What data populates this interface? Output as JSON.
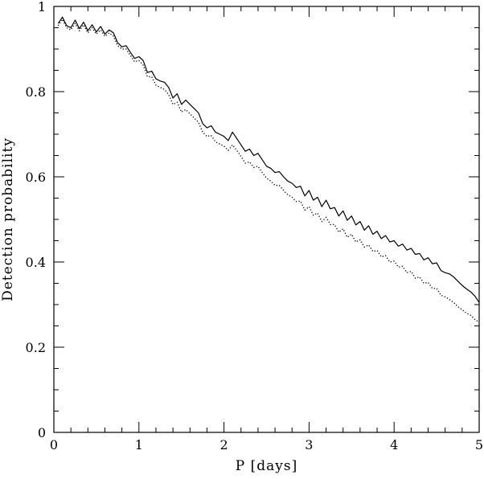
{
  "chart_data": {
    "type": "line",
    "title": "",
    "xlabel": "P [days]",
    "ylabel": "Detection probability",
    "xlim": [
      0,
      5
    ],
    "ylim": [
      0,
      1
    ],
    "x_ticks": [
      0,
      1,
      2,
      3,
      4,
      5
    ],
    "x_tick_labels": [
      "0",
      "1",
      "2",
      "3",
      "4",
      "5"
    ],
    "y_ticks": [
      0,
      0.2,
      0.4,
      0.6,
      0.8,
      1
    ],
    "y_tick_labels": [
      "0",
      "0.2",
      "0.4",
      "0.6",
      "0.8",
      "1"
    ],
    "grid": false,
    "series": [
      {
        "style": "solid",
        "color": "#000000",
        "x": [
          0.05,
          0.1,
          0.15,
          0.2,
          0.25,
          0.3,
          0.35,
          0.4,
          0.45,
          0.5,
          0.55,
          0.6,
          0.65,
          0.7,
          0.75,
          0.8,
          0.85,
          0.9,
          0.95,
          1.0,
          1.05,
          1.1,
          1.15,
          1.2,
          1.25,
          1.3,
          1.35,
          1.4,
          1.45,
          1.5,
          1.55,
          1.6,
          1.65,
          1.7,
          1.75,
          1.8,
          1.85,
          1.9,
          1.95,
          2.0,
          2.05,
          2.1,
          2.15,
          2.2,
          2.25,
          2.3,
          2.35,
          2.4,
          2.45,
          2.5,
          2.55,
          2.6,
          2.65,
          2.7,
          2.75,
          2.8,
          2.85,
          2.9,
          2.95,
          3.0,
          3.05,
          3.1,
          3.15,
          3.2,
          3.25,
          3.3,
          3.35,
          3.4,
          3.45,
          3.5,
          3.55,
          3.6,
          3.65,
          3.7,
          3.75,
          3.8,
          3.85,
          3.9,
          3.95,
          4.0,
          4.05,
          4.1,
          4.15,
          4.2,
          4.25,
          4.3,
          4.35,
          4.4,
          4.45,
          4.5,
          4.55,
          4.6,
          4.65,
          4.7,
          4.75,
          4.8,
          4.85,
          4.9,
          4.95,
          5.0
        ],
        "values": [
          0.96,
          0.975,
          0.955,
          0.95,
          0.968,
          0.948,
          0.963,
          0.943,
          0.957,
          0.94,
          0.953,
          0.935,
          0.945,
          0.938,
          0.915,
          0.905,
          0.908,
          0.892,
          0.878,
          0.882,
          0.873,
          0.845,
          0.848,
          0.83,
          0.825,
          0.822,
          0.81,
          0.785,
          0.795,
          0.77,
          0.78,
          0.77,
          0.76,
          0.75,
          0.725,
          0.715,
          0.72,
          0.705,
          0.7,
          0.695,
          0.685,
          0.705,
          0.69,
          0.675,
          0.66,
          0.665,
          0.65,
          0.655,
          0.64,
          0.625,
          0.62,
          0.61,
          0.612,
          0.6,
          0.59,
          0.585,
          0.575,
          0.578,
          0.555,
          0.568,
          0.545,
          0.552,
          0.53,
          0.545,
          0.525,
          0.528,
          0.508,
          0.52,
          0.498,
          0.508,
          0.487,
          0.495,
          0.475,
          0.485,
          0.465,
          0.472,
          0.455,
          0.462,
          0.447,
          0.45,
          0.437,
          0.442,
          0.428,
          0.432,
          0.418,
          0.42,
          0.405,
          0.41,
          0.396,
          0.398,
          0.38,
          0.375,
          0.372,
          0.365,
          0.355,
          0.345,
          0.337,
          0.33,
          0.32,
          0.305
        ]
      },
      {
        "style": "dotted",
        "color": "#000000",
        "x": [
          0.05,
          0.1,
          0.15,
          0.2,
          0.25,
          0.3,
          0.35,
          0.4,
          0.45,
          0.5,
          0.55,
          0.6,
          0.65,
          0.7,
          0.75,
          0.8,
          0.85,
          0.9,
          0.95,
          1.0,
          1.05,
          1.1,
          1.15,
          1.2,
          1.25,
          1.3,
          1.35,
          1.4,
          1.45,
          1.5,
          1.55,
          1.6,
          1.65,
          1.7,
          1.75,
          1.8,
          1.85,
          1.9,
          1.95,
          2.0,
          2.05,
          2.1,
          2.15,
          2.2,
          2.25,
          2.3,
          2.35,
          2.4,
          2.45,
          2.5,
          2.55,
          2.6,
          2.65,
          2.7,
          2.75,
          2.8,
          2.85,
          2.9,
          2.95,
          3.0,
          3.05,
          3.1,
          3.15,
          3.2,
          3.25,
          3.3,
          3.35,
          3.4,
          3.45,
          3.5,
          3.55,
          3.6,
          3.65,
          3.7,
          3.75,
          3.8,
          3.85,
          3.9,
          3.95,
          4.0,
          4.05,
          4.1,
          4.15,
          4.2,
          4.25,
          4.3,
          4.35,
          4.4,
          4.45,
          4.5,
          4.55,
          4.6,
          4.65,
          4.7,
          4.75,
          4.8,
          4.85,
          4.9,
          4.95,
          5.0
        ],
        "values": [
          0.955,
          0.97,
          0.95,
          0.945,
          0.96,
          0.943,
          0.957,
          0.938,
          0.95,
          0.935,
          0.945,
          0.93,
          0.938,
          0.93,
          0.908,
          0.9,
          0.9,
          0.885,
          0.87,
          0.873,
          0.862,
          0.835,
          0.835,
          0.815,
          0.81,
          0.805,
          0.793,
          0.77,
          0.775,
          0.752,
          0.758,
          0.748,
          0.738,
          0.728,
          0.705,
          0.695,
          0.697,
          0.682,
          0.677,
          0.672,
          0.662,
          0.675,
          0.662,
          0.648,
          0.632,
          0.635,
          0.622,
          0.625,
          0.61,
          0.597,
          0.59,
          0.58,
          0.58,
          0.568,
          0.558,
          0.552,
          0.542,
          0.543,
          0.522,
          0.53,
          0.51,
          0.515,
          0.495,
          0.505,
          0.488,
          0.488,
          0.47,
          0.478,
          0.458,
          0.465,
          0.447,
          0.452,
          0.435,
          0.44,
          0.425,
          0.427,
          0.412,
          0.415,
          0.4,
          0.402,
          0.388,
          0.39,
          0.375,
          0.378,
          0.362,
          0.365,
          0.35,
          0.352,
          0.338,
          0.338,
          0.322,
          0.318,
          0.312,
          0.305,
          0.295,
          0.288,
          0.28,
          0.275,
          0.265,
          0.258
        ]
      }
    ]
  }
}
